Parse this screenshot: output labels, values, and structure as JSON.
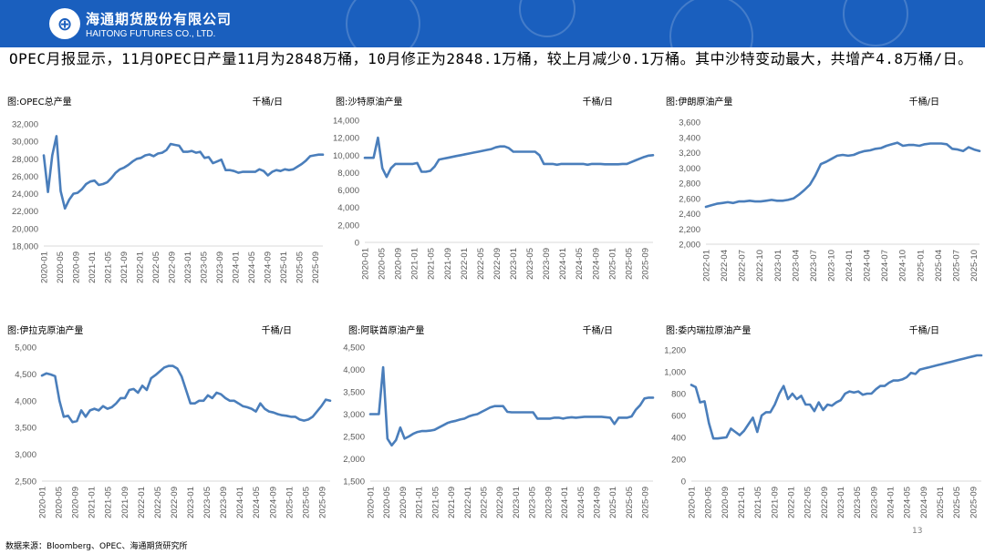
{
  "header": {
    "company_cn": "海通期货股份有限公司",
    "company_en": "HAITONG FUTURES CO., LTD.",
    "logo_glyph": "⊕"
  },
  "summary": "OPEC月报显示，11月OPEC日产量11月为2848万桶，10月修正为2848.1万桶，较上月减少0.1万桶。其中沙特变动最大，共增产4.8万桶/日。",
  "source": "数据来源：Bloomberg、OPEC、海通期货研究所",
  "page_no": "13",
  "colors": {
    "line": "#4a7ebb",
    "axis": "#d9d9d9",
    "header_bg": "#1a5fbe"
  },
  "chart_data": [
    {
      "type": "line",
      "title": "图:OPEC总产量",
      "unit": "千桶/日",
      "ylim": [
        18000,
        32000
      ],
      "yticks": [
        18000,
        20000,
        22000,
        24000,
        26000,
        28000,
        30000,
        32000
      ],
      "xticks": [
        "2020-01",
        "2020-05",
        "2020-09",
        "2021-01",
        "2021-05",
        "2021-09",
        "2022-01",
        "2022-05",
        "2022-09",
        "2023-01",
        "2023-05",
        "2023-09",
        "2024-01",
        "2024-05",
        "2024-09",
        "2025-01",
        "2025-05",
        "2025-09"
      ],
      "x_start": "2020-01",
      "x_end": "2025-11",
      "values": [
        28400,
        24200,
        28400,
        30600,
        24300,
        22300,
        23300,
        24000,
        24100,
        24500,
        25100,
        25400,
        25500,
        25000,
        25100,
        25300,
        25800,
        26400,
        26800,
        27000,
        27300,
        27700,
        28000,
        28100,
        28400,
        28500,
        28300,
        28600,
        28700,
        29000,
        29700,
        29600,
        29500,
        28800,
        28800,
        28900,
        28700,
        28800,
        28100,
        28200,
        27500,
        27700,
        27900,
        26700,
        26700,
        26600,
        26400,
        26500,
        26500,
        26500,
        26500,
        26800,
        26600,
        26100,
        26500,
        26700,
        26600,
        26800,
        26700,
        26800,
        27100,
        27400,
        27800,
        28300,
        28400,
        28480,
        28480
      ]
    },
    {
      "type": "line",
      "title": "图:沙特原油产量",
      "unit": "千桶/日",
      "ylim": [
        0,
        14000
      ],
      "yticks": [
        0,
        2000,
        4000,
        6000,
        8000,
        10000,
        12000,
        14000
      ],
      "xticks": [
        "2020-01",
        "2020-05",
        "2020-09",
        "2021-01",
        "2021-05",
        "2021-09",
        "2022-01",
        "2022-05",
        "2022-09",
        "2023-01",
        "2023-05",
        "2023-09",
        "2024-01",
        "2024-05",
        "2024-09",
        "2025-01",
        "2025-05",
        "2025-09"
      ],
      "x_start": "2020-01",
      "x_end": "2025-11",
      "values": [
        9700,
        9700,
        9700,
        12000,
        8500,
        7500,
        8500,
        9000,
        9000,
        9000,
        9000,
        9000,
        9100,
        8100,
        8100,
        8200,
        8700,
        9500,
        9600,
        9700,
        9800,
        9900,
        10000,
        10100,
        10200,
        10300,
        10400,
        10500,
        10600,
        10700,
        10900,
        11000,
        11000,
        10800,
        10400,
        10400,
        10400,
        10400,
        10400,
        10400,
        10000,
        9000,
        9000,
        9000,
        8900,
        9000,
        9000,
        9000,
        9000,
        9000,
        9000,
        8900,
        9000,
        9000,
        9000,
        8950,
        8950,
        8950,
        8950,
        9000,
        9000,
        9200,
        9400,
        9600,
        9800,
        9950,
        10000
      ]
    },
    {
      "type": "line",
      "title": "图:伊朗原油产量",
      "unit": "千桶/日",
      "ylim": [
        2000,
        3600
      ],
      "yticks": [
        2000,
        2200,
        2400,
        2600,
        2800,
        3000,
        3200,
        3400,
        3600
      ],
      "xticks": [
        "2022-01",
        "2022-04",
        "2022-07",
        "2022-10",
        "2023-01",
        "2023-04",
        "2023-07",
        "2023-10",
        "2024-01",
        "2024-04",
        "2024-07",
        "2024-10",
        "2025-01",
        "2025-04",
        "2025-07",
        "2025-10"
      ],
      "x_start": "2022-01",
      "x_end": "2025-11",
      "values": [
        2490,
        2510,
        2530,
        2540,
        2550,
        2540,
        2560,
        2560,
        2570,
        2560,
        2560,
        2570,
        2580,
        2570,
        2570,
        2580,
        2600,
        2650,
        2710,
        2780,
        2900,
        3050,
        3080,
        3120,
        3160,
        3170,
        3160,
        3170,
        3200,
        3220,
        3230,
        3250,
        3260,
        3290,
        3310,
        3330,
        3290,
        3300,
        3300,
        3290,
        3310,
        3320,
        3320,
        3320,
        3310,
        3250,
        3240,
        3220,
        3270,
        3240,
        3220
      ]
    },
    {
      "type": "line",
      "title": "图:伊拉克原油产量",
      "unit": "千桶/日",
      "ylim": [
        2500,
        5000
      ],
      "yticks": [
        2500,
        3000,
        3500,
        4000,
        4500,
        5000
      ],
      "xticks": [
        "2020-01",
        "2020-05",
        "2020-09",
        "2021-01",
        "2021-05",
        "2021-09",
        "2022-01",
        "2022-05",
        "2022-09",
        "2023-01",
        "2023-05",
        "2023-09",
        "2024-01",
        "2024-05",
        "2024-09",
        "2025-01",
        "2025-05",
        "2025-09"
      ],
      "x_start": "2020-01",
      "x_end": "2025-11",
      "values": [
        4470,
        4510,
        4490,
        4460,
        4000,
        3700,
        3720,
        3600,
        3620,
        3820,
        3700,
        3820,
        3850,
        3820,
        3900,
        3850,
        3880,
        3950,
        4050,
        4050,
        4200,
        4220,
        4150,
        4280,
        4200,
        4420,
        4480,
        4550,
        4620,
        4650,
        4650,
        4600,
        4450,
        4200,
        3950,
        3950,
        4000,
        4000,
        4100,
        4050,
        4150,
        4120,
        4050,
        4000,
        4000,
        3950,
        3900,
        3880,
        3850,
        3800,
        3950,
        3850,
        3800,
        3780,
        3750,
        3730,
        3720,
        3700,
        3700,
        3650,
        3630,
        3650,
        3700,
        3800,
        3900,
        4020,
        4000
      ]
    },
    {
      "type": "line",
      "title": "图:阿联酋原油产量",
      "unit": "千桶/日",
      "ylim": [
        1500,
        4500
      ],
      "yticks": [
        1500,
        2000,
        2500,
        3000,
        3500,
        4000,
        4500
      ],
      "xticks": [
        "2020-01",
        "2020-05",
        "2020-09",
        "2021-01",
        "2021-05",
        "2021-09",
        "2022-01",
        "2022-05",
        "2022-09",
        "2023-01",
        "2023-05",
        "2023-09",
        "2024-01",
        "2024-05",
        "2024-09",
        "2025-01",
        "2025-05",
        "2025-09"
      ],
      "x_start": "2020-01",
      "x_end": "2025-11",
      "values": [
        3000,
        3000,
        3000,
        4050,
        2450,
        2300,
        2420,
        2700,
        2450,
        2500,
        2560,
        2600,
        2620,
        2620,
        2630,
        2650,
        2700,
        2750,
        2800,
        2830,
        2850,
        2880,
        2900,
        2950,
        2980,
        3000,
        3050,
        3100,
        3150,
        3180,
        3180,
        3180,
        3050,
        3040,
        3040,
        3040,
        3040,
        3040,
        3040,
        2900,
        2900,
        2900,
        2900,
        2920,
        2920,
        2900,
        2920,
        2930,
        2920,
        2930,
        2940,
        2940,
        2940,
        2940,
        2940,
        2930,
        2920,
        2780,
        2920,
        2920,
        2920,
        2950,
        3100,
        3200,
        3350,
        3370,
        3370
      ]
    },
    {
      "type": "line",
      "title": "图:委内瑞拉原油产量",
      "unit": "千桶/日",
      "ylim": [
        0,
        1200
      ],
      "yticks": [
        0,
        200,
        400,
        600,
        800,
        1000,
        1200
      ],
      "xticks": [
        "2020-01",
        "2020-05",
        "2020-09",
        "2021-01",
        "2021-05",
        "2021-09",
        "2022-01",
        "2022-05",
        "2022-09",
        "2023-01",
        "2023-05",
        "2023-09",
        "2024-01",
        "2024-05",
        "2024-09",
        "2025-01",
        "2025-05",
        "2025-09"
      ],
      "x_start": "2020-01",
      "x_end": "2025-11",
      "values": [
        880,
        860,
        720,
        730,
        530,
        390,
        390,
        395,
        400,
        480,
        450,
        420,
        460,
        520,
        580,
        450,
        600,
        630,
        630,
        700,
        800,
        870,
        750,
        800,
        750,
        780,
        700,
        700,
        640,
        720,
        650,
        700,
        690,
        720,
        740,
        800,
        820,
        810,
        820,
        790,
        800,
        800,
        840,
        870,
        870,
        900,
        920,
        920,
        930,
        950,
        990,
        980,
        1020,
        1030,
        1040,
        1050,
        1060,
        1070,
        1080,
        1090,
        1100,
        1110,
        1120,
        1130,
        1140,
        1150,
        1150
      ]
    }
  ]
}
